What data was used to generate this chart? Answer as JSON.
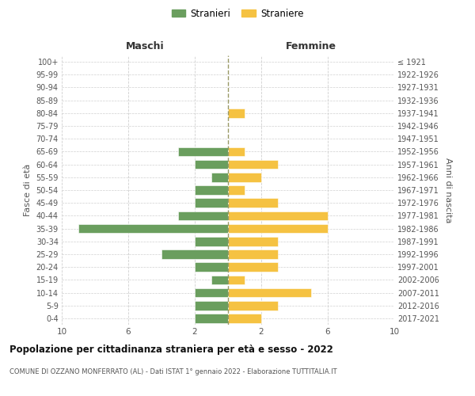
{
  "age_groups": [
    "0-4",
    "5-9",
    "10-14",
    "15-19",
    "20-24",
    "25-29",
    "30-34",
    "35-39",
    "40-44",
    "45-49",
    "50-54",
    "55-59",
    "60-64",
    "65-69",
    "70-74",
    "75-79",
    "80-84",
    "85-89",
    "90-94",
    "95-99",
    "100+"
  ],
  "birth_years": [
    "2017-2021",
    "2012-2016",
    "2007-2011",
    "2002-2006",
    "1997-2001",
    "1992-1996",
    "1987-1991",
    "1982-1986",
    "1977-1981",
    "1972-1976",
    "1967-1971",
    "1962-1966",
    "1957-1961",
    "1952-1956",
    "1947-1951",
    "1942-1946",
    "1937-1941",
    "1932-1936",
    "1927-1931",
    "1922-1926",
    "≤ 1921"
  ],
  "maschi": [
    2,
    2,
    2,
    1,
    2,
    4,
    2,
    9,
    3,
    2,
    2,
    1,
    2,
    3,
    0,
    0,
    0,
    0,
    0,
    0,
    0
  ],
  "femmine": [
    2,
    3,
    5,
    1,
    3,
    3,
    3,
    6,
    6,
    3,
    1,
    2,
    3,
    1,
    0,
    0,
    1,
    0,
    0,
    0,
    0
  ],
  "color_maschi": "#6a9e5e",
  "color_femmine": "#f5c242",
  "title": "Popolazione per cittadinanza straniera per età e sesso - 2022",
  "subtitle": "COMUNE DI OZZANO MONFERRATO (AL) - Dati ISTAT 1° gennaio 2022 - Elaborazione TUTTITALIA.IT",
  "xlabel_left": "Maschi",
  "xlabel_right": "Femmine",
  "ylabel_left": "Fasce di età",
  "ylabel_right": "Anni di nascita",
  "legend_maschi": "Stranieri",
  "legend_femmine": "Straniere",
  "xlim": 10,
  "background_color": "#ffffff",
  "grid_color": "#d0d0d0",
  "dashed_line_color": "#999966"
}
